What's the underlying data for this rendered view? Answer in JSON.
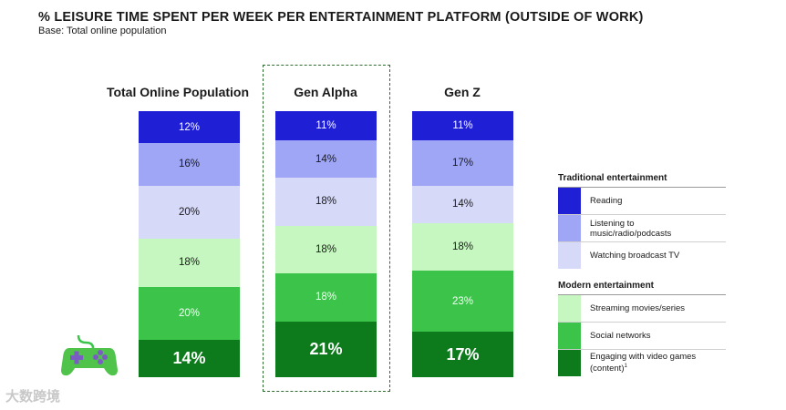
{
  "title": "% LEISURE TIME SPENT PER WEEK PER ENTERTAINMENT PLATFORM (OUTSIDE OF WORK)",
  "subtitle": "Base: Total online population",
  "colors": {
    "reading": "#1f1fd6",
    "listening": "#9ea6f5",
    "broadcast": "#d6d9f7",
    "streaming": "#c6f7c0",
    "social": "#3cc44a",
    "gaming": "#0d7a1c"
  },
  "chart_data": {
    "type": "bar",
    "stacked": true,
    "unit": "%",
    "categories": [
      "Total Online Population",
      "Gen Alpha",
      "Gen Z"
    ],
    "highlighted_category": "Gen Alpha",
    "series": [
      {
        "name": "Reading",
        "group": "Traditional entertainment",
        "values": [
          12,
          11,
          11
        ],
        "labels": [
          "12%",
          "11%",
          "11%"
        ]
      },
      {
        "name": "Listening to music/radio/podcasts",
        "group": "Traditional entertainment",
        "values": [
          16,
          14,
          17
        ],
        "labels": [
          "16%",
          "14%",
          "17%"
        ]
      },
      {
        "name": "Watching broadcast TV",
        "group": "Traditional entertainment",
        "values": [
          20,
          18,
          14
        ],
        "labels": [
          "20%",
          "18%",
          "14%"
        ]
      },
      {
        "name": "Streaming movies/series",
        "group": "Modern entertainment",
        "values": [
          18,
          18,
          18
        ],
        "labels": [
          "18%",
          "18%",
          "18%"
        ]
      },
      {
        "name": "Social networks",
        "group": "Modern entertainment",
        "values": [
          20,
          18,
          23
        ],
        "labels": [
          "20%",
          "18%",
          "23%"
        ]
      },
      {
        "name": "Engaging with video games (content)",
        "group": "Modern entertainment",
        "values": [
          14,
          21,
          17
        ],
        "labels": [
          "14%",
          "21%",
          "17%"
        ]
      }
    ]
  },
  "legend": {
    "traditional_heading": "Traditional entertainment",
    "modern_heading": "Modern entertainment",
    "reading": "Reading",
    "listening_line1": "Listening to",
    "listening_line2": "music/radio/podcasts",
    "broadcast": "Watching broadcast TV",
    "streaming": "Streaming movies/series",
    "social": "Social networks",
    "gaming_line1": "Engaging with video games",
    "gaming_line2": "(content)",
    "gaming_footnote": "1"
  },
  "watermark": "大数跨境",
  "icons": {
    "gamepad": "gamepad-icon",
    "watermark": "watermark-logo-icon"
  }
}
